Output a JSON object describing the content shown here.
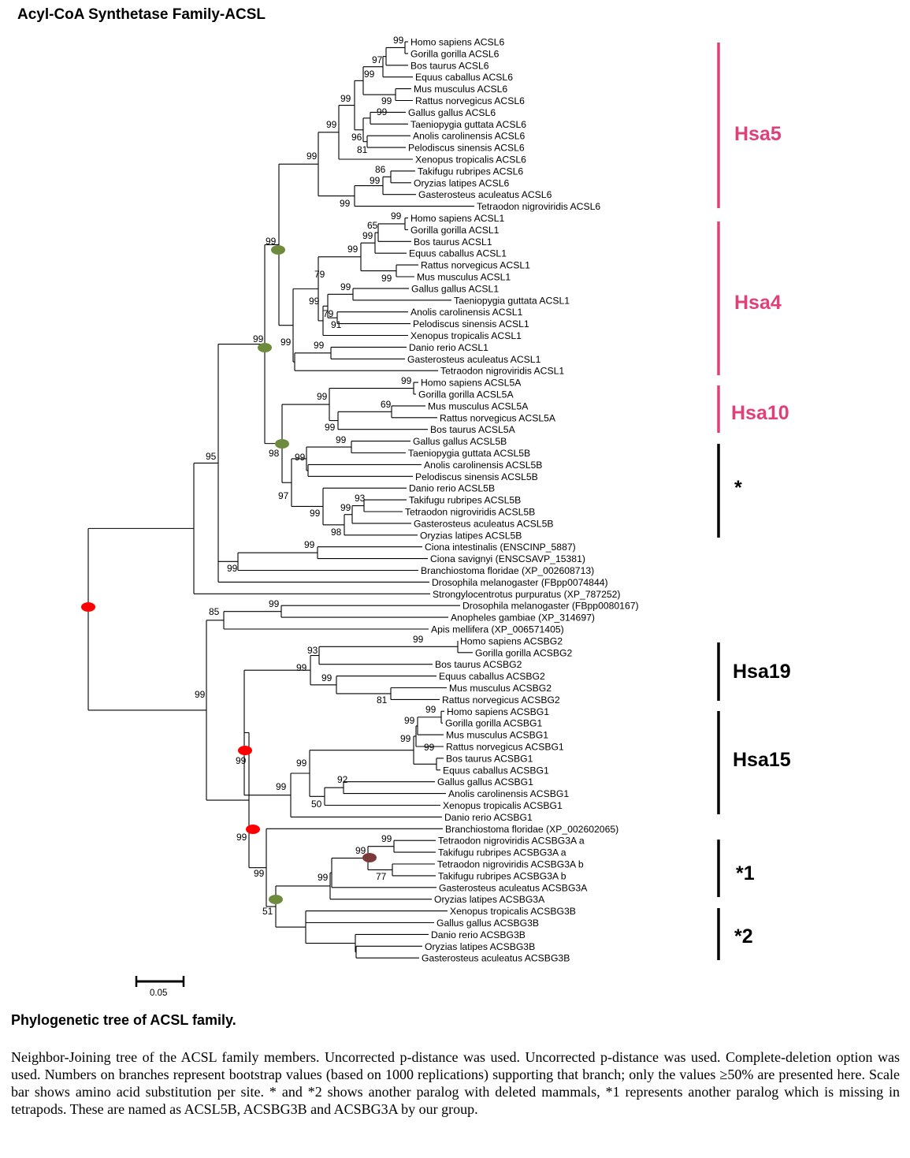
{
  "figure": {
    "title": "Acyl-CoA Synthetase Family-ACSL",
    "scale_bar_label": "0.05",
    "caption_title": "Phylogenetic tree of ACSL family.",
    "caption_text": "Neighbor-Joining tree of the ACSL family members. Uncorrected p-distance was used. Uncorrected p-distance was used. Complete-deletion option was used. Numbers on branches represent bootstrap values (based on 1000 replications) supporting that branch; only the values ≥50% are presented here. Scale bar shows amino acid substitution per site. * and *2 shows another paralog with deleted mammals, *1 represents another paralog which is missing in tetrapods. These are named as ACSL5B, ACSBG3B and ACSBG3A by our group."
  },
  "colors": {
    "group_pink": "#e0407a",
    "group_black": "#000000",
    "node_red": "#ff0000",
    "node_green": "#6e8b3d",
    "node_brown": "#7b3a3a"
  },
  "taxa": [
    "Homo sapiens ACSL6",
    "Gorilla gorilla ACSL6",
    "Bos taurus ACSL6",
    "Equus caballus ACSL6",
    "Mus musculus ACSL6",
    "Rattus norvegicus ACSL6",
    "Gallus gallus ACSL6",
    "Taeniopygia guttata ACSL6",
    "Anolis carolinensis ACSL6",
    "Pelodiscus sinensis ACSL6",
    "Xenopus tropicalis ACSL6",
    "Takifugu rubripes ACSL6",
    "Oryzias latipes ACSL6",
    "Gasterosteus aculeatus ACSL6",
    "Tetraodon nigroviridis ACSL6",
    "Homo sapiens ACSL1",
    "Gorilla gorilla ACSL1",
    "Bos taurus ACSL1",
    "Equus caballus ACSL1",
    "Rattus norvegicus ACSL1",
    "Mus musculus ACSL1",
    "Gallus gallus ACSL1",
    "Taeniopygia guttata ACSL1",
    "Anolis carolinensis ACSL1",
    "Pelodiscus sinensis ACSL1",
    "Xenopus tropicalis ACSL1",
    "Danio rerio ACSL1",
    "Gasterosteus aculeatus ACSL1",
    "Tetraodon nigroviridis ACSL1",
    "Homo sapiens ACSL5A",
    "Gorilla gorilla ACSL5A",
    "Mus musculus ACSL5A",
    "Rattus norvegicus ACSL5A",
    "Bos taurus ACSL5A",
    "Gallus gallus ACSL5B",
    "Taeniopygia guttata ACSL5B",
    "Anolis carolinensis ACSL5B",
    "Pelodiscus sinensis ACSL5B",
    "Danio rerio ACSL5B",
    "Takifugu rubripes ACSL5B",
    "Tetraodon nigroviridis ACSL5B",
    "Gasterosteus aculeatus ACSL5B",
    "Oryzias latipes ACSL5B",
    "Ciona intestinalis (ENSCINP_5887)",
    "Ciona savignyi (ENSCSAVP_15381)",
    "Branchiostoma floridae (XP_002608713)",
    "Drosophila melanogaster (FBpp0074844)",
    "Strongylocentrotus purpuratus (XP_787252)",
    "Drosophila melanogaster (FBpp0080167)",
    "Anopheles gambiae (XP_314697)",
    "Apis mellifera (XP_006571405)",
    "Homo sapiens ACSBG2",
    "Gorilla gorilla ACSBG2",
    "Bos taurus ACSBG2",
    "Equus caballus ACSBG2",
    "Mus musculus ACSBG2",
    "Rattus norvegicus ACSBG2",
    "Homo sapiens ACSBG1",
    "Gorilla gorilla ACSBG1",
    "Mus musculus ACSBG1",
    "Rattus norvegicus ACSBG1",
    "Bos taurus ACSBG1",
    "Equus caballus ACSBG1",
    "Gallus gallus ACSBG1",
    "Anolis carolinensis ACSBG1",
    "Xenopus tropicalis ACSBG1",
    "Danio rerio ACSBG1",
    "Branchiostoma floridae (XP_002602065)",
    "Tetraodon nigroviridis ACSBG3A a",
    "Takifugu rubripes ACSBG3A a",
    "Tetraodon nigroviridis ACSBG3A b",
    "Takifugu rubripes ACSBG3A b",
    "Gasterosteus aculeatus ACSBG3A",
    "Oryzias latipes ACSBG3A",
    "Xenopus tropicalis ACSBG3B",
    "Gallus gallus ACSBG3B",
    "Danio rerio ACSBG3B",
    "Oryzias latipes ACSBG3B",
    "Gasterosteus aculeatus ACSBG3B"
  ],
  "bootstrap": [
    "99",
    "97",
    "99",
    "99",
    "99",
    "99",
    "99",
    "96",
    "81",
    "99",
    "86",
    "99",
    "99",
    "99",
    "65",
    "99",
    "99",
    "79",
    "99",
    "99",
    "99",
    "79",
    "91",
    "99",
    "99",
    "99",
    "99",
    "99",
    "99",
    "69",
    "99",
    "99",
    "97",
    "99",
    "98",
    "93",
    "99",
    "99",
    "98",
    "99",
    "99",
    "95",
    "99",
    "85",
    "99",
    "93",
    "99",
    "99",
    "81",
    "99",
    "99",
    "99",
    "99",
    "99",
    "92",
    "99",
    "50",
    "99",
    "99",
    "99",
    "99",
    "99",
    "77",
    "99",
    "99",
    "51"
  ],
  "groups": [
    "Hsa5",
    "Hsa4",
    "Hsa10",
    "*",
    "Hsa19",
    "Hsa15",
    "*1",
    "*2"
  ]
}
